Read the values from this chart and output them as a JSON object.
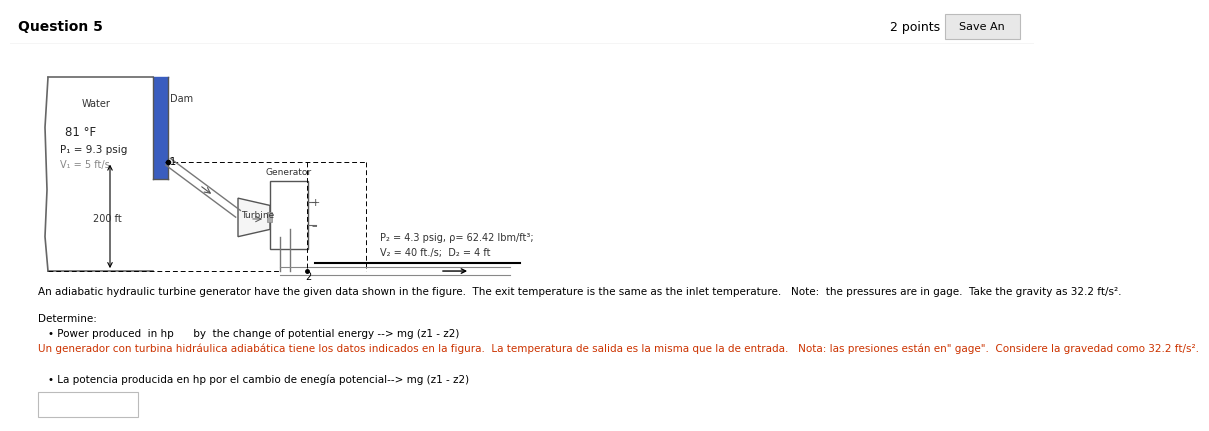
{
  "title": "Question 5",
  "points_text": "2 points",
  "save_text": "Save An",
  "background_color": "#ffffff",
  "diagram": {
    "water_label": "Water",
    "dam_label": "Dam",
    "temp": "81 °F",
    "P1": "P₁ = 9.3 psig",
    "V1": "V₁ = 5 ft/s",
    "height": "200 ft",
    "generator_label": "Generator",
    "turbine_label": "Turbine",
    "point1": "1",
    "point2": "2",
    "P2_line1": "P₂ = 4.3 psig, ρ= 62.42 lbm/ft³;",
    "V2_line": "V₂ = 40 ft./s;  D₂ = 4 ft"
  },
  "description": "An adiabatic hydraulic turbine generator have the given data shown in the figure.  The exit temperature is the same as the inlet temperature.   Note:  the pressures are in gage.  Take the gravity as 32.2 ft/s².",
  "determine_label": "Determine:",
  "bullet1_black": "Power produced  in hp      by  the change of potential energy --> mg (z1 - z2)",
  "spanish_text": "Un generador con turbina hidráulica adiabática tiene los datos indicados en la figura.  La temperatura de salida es la misma que la de entrada.   Nota: las presiones están en\" gage\".  Considere la gravedad como 32.2 ft/s².",
  "bullet2_black": "La potencia producida en hp por el cambio de enegía potencial--> mg (z1 - z2)",
  "answer_box": true,
  "top_bar_color": "#f5f5f5",
  "top_bar_line_color": "#cccccc",
  "save_btn_color": "#e8e8e8",
  "save_btn_edge": "#bbbbbb"
}
